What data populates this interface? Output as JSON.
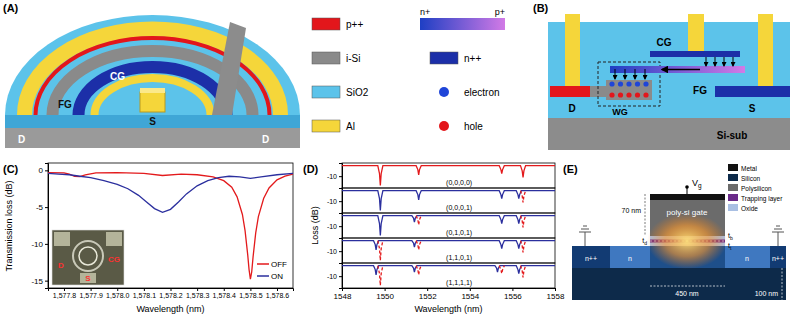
{
  "panel_a": {
    "label": "(A)",
    "texts": {
      "cg": "CG",
      "fg": "FG",
      "s": "S",
      "d_left": "D",
      "d_right": "D"
    }
  },
  "materials_legend": {
    "swatches": [
      {
        "label": "p++",
        "color": "#e3161b"
      },
      {
        "label": "i-Si",
        "color": "#8a8a8a"
      },
      {
        "label": "SiO2",
        "color": "#5cc3ea"
      },
      {
        "label": "Al",
        "color": "#f5d63a"
      },
      {
        "label": "n++",
        "color": "#1c2fa8"
      }
    ],
    "gradient": {
      "from_label": "n+",
      "to_label": "p+",
      "from_color": "#1e3fc4",
      "to_color": "#d27ae6"
    },
    "dots": [
      {
        "label": "electron",
        "color": "#1f45d8"
      },
      {
        "label": "hole",
        "color": "#e3161b"
      }
    ]
  },
  "panel_b": {
    "label": "(B)",
    "texts": {
      "d": "D",
      "s": "S",
      "cg": "CG",
      "fg": "FG",
      "wg": "WG",
      "sub": "Si-sub"
    }
  },
  "panel_e": {
    "label": "(E)",
    "gate_voltage": {
      "main": "V",
      "sub": "g"
    },
    "gate": "poly-si gate",
    "gate_height": "70 nm",
    "channel_length": "450 nm",
    "thickness": "100 nm",
    "thickness_labels": [
      {
        "main": "t",
        "sub": "d"
      },
      {
        "main": "t",
        "sub": "b"
      },
      {
        "main": "t",
        "sub": "t"
      }
    ],
    "doping": [
      "n++",
      "n",
      "n",
      "n++"
    ],
    "legend": [
      {
        "label": "Metal",
        "color": "#111111"
      },
      {
        "label": "Silicon",
        "color": "#0d2a4a"
      },
      {
        "label": "Polysilicon",
        "color": "#6b6b6b"
      },
      {
        "label": "Trapping layer",
        "color": "#6a2a8a"
      },
      {
        "label": "Oxide",
        "color": "#a9bfe3"
      }
    ]
  },
  "chart_data": [
    {
      "type": "line",
      "title": "(C)",
      "xlabel": "Wavelength (nm)",
      "ylabel": "Transmission loss (dB)",
      "xlim": [
        1577.74,
        1578.66
      ],
      "ylim": [
        -16,
        1
      ],
      "xticks": [
        {
          "value": 1577.8,
          "label": "1,577.8"
        },
        {
          "value": 1577.9,
          "label": "1,577.9"
        },
        {
          "value": 1578.0,
          "label": "1,578.0"
        },
        {
          "value": 1578.1,
          "label": "1,578.1"
        },
        {
          "value": 1578.2,
          "label": "1,578.2"
        },
        {
          "value": 1578.3,
          "label": "1,578.3"
        },
        {
          "value": 1578.4,
          "label": "1,578.4"
        },
        {
          "value": 1578.5,
          "label": "1,578.5"
        },
        {
          "value": 1578.6,
          "label": "1,578.6"
        }
      ],
      "yticks": [
        0,
        -5,
        -10,
        -15
      ],
      "legend": "lower right",
      "annotations": [
        "D",
        "S",
        "CG"
      ],
      "series": [
        {
          "name": "OFF",
          "color": "#e31a1c",
          "x": [
            1577.74,
            1577.8,
            1577.82,
            1577.84,
            1577.86,
            1577.88,
            1577.92,
            1578.0,
            1578.1,
            1578.17,
            1578.24,
            1578.3,
            1578.36,
            1578.4,
            1578.43,
            1578.45,
            1578.47,
            1578.48,
            1578.49,
            1578.495,
            1578.5,
            1578.505,
            1578.51,
            1578.52,
            1578.53,
            1578.55,
            1578.57,
            1578.6,
            1578.63,
            1578.66
          ],
          "values": [
            -0.3,
            -0.35,
            -0.5,
            -0.8,
            -0.85,
            -0.6,
            -0.35,
            -0.3,
            -0.4,
            -0.7,
            -0.5,
            -0.6,
            -0.9,
            -1.4,
            -2.3,
            -3.6,
            -6,
            -8.2,
            -11.5,
            -13.5,
            -14.8,
            -13.8,
            -11.8,
            -8.5,
            -6.3,
            -3.8,
            -2.4,
            -1.3,
            -0.8,
            -0.5
          ]
        },
        {
          "name": "ON",
          "color": "#2b2f9e",
          "x": [
            1577.74,
            1577.78,
            1577.82,
            1577.86,
            1577.9,
            1577.95,
            1578.0,
            1578.04,
            1578.08,
            1578.11,
            1578.14,
            1578.17,
            1578.2,
            1578.23,
            1578.26,
            1578.3,
            1578.34,
            1578.38,
            1578.42,
            1578.46,
            1578.5,
            1578.54,
            1578.6,
            1578.66
          ],
          "values": [
            -0.4,
            -0.5,
            -0.6,
            -0.8,
            -1.0,
            -1.4,
            -1.9,
            -2.5,
            -3.4,
            -4.3,
            -5.2,
            -5.7,
            -5.3,
            -4.3,
            -3.2,
            -2.1,
            -1.4,
            -1.0,
            -0.8,
            -0.9,
            -1.1,
            -0.9,
            -0.6,
            -0.4
          ]
        }
      ]
    },
    {
      "type": "line",
      "title": "(D)",
      "tick_labels": "y",
      "xlim": [
        1548,
        1558
      ],
      "ylim": [
        -19,
        0
      ],
      "yticks": [
        -10
      ],
      "annotations": [
        "(0,0,0,0)"
      ],
      "series": [
        {
          "color": "#e31a1c",
          "line_style": "solid",
          "x": [
            1548,
            1549.68,
            1549.76,
            1549.8,
            1549.84,
            1549.92,
            1551.48,
            1551.56,
            1551.6,
            1551.64,
            1551.72,
            1555.38,
            1555.46,
            1555.5,
            1555.54,
            1555.62,
            1556.38,
            1556.46,
            1556.5,
            1556.54,
            1556.62,
            1558
          ],
          "values": [
            -2,
            -2,
            -8,
            -17,
            -8,
            -2,
            -2,
            -5,
            -9,
            -5,
            -2,
            -2,
            -5,
            -8,
            -5,
            -2,
            -2,
            -6,
            -11,
            -6,
            -2,
            -2
          ]
        }
      ]
    },
    {
      "type": "line",
      "tick_labels": "y",
      "xlim": [
        1548,
        1558
      ],
      "ylim": [
        -19,
        0
      ],
      "yticks": [
        -10
      ],
      "annotations": [
        "(0,0,0,1)"
      ],
      "series": [
        {
          "color": "#2b2f9e",
          "line_style": "solid",
          "x": [
            1548,
            1549.68,
            1549.76,
            1549.8,
            1549.84,
            1549.92,
            1551.48,
            1551.56,
            1551.6,
            1551.64,
            1551.72,
            1555.38,
            1555.46,
            1555.5,
            1555.54,
            1555.62,
            1556.18,
            1556.26,
            1556.3,
            1556.34,
            1556.42,
            1558
          ],
          "values": [
            -2,
            -2,
            -8,
            -17,
            -8,
            -2,
            -2,
            -5,
            -9,
            -5,
            -2,
            -2,
            -5,
            -8,
            -5,
            -2,
            -2,
            -5,
            -8,
            -5,
            -2,
            -2
          ]
        },
        {
          "color": "#e31a1c",
          "line_style": "dashed",
          "x": [
            1556.38,
            1556.46,
            1556.5,
            1556.54,
            1556.62
          ],
          "values": [
            -2,
            -6,
            -11,
            -6,
            -2
          ]
        }
      ]
    },
    {
      "type": "line",
      "tick_labels": "y",
      "xlim": [
        1548,
        1558
      ],
      "ylim": [
        -19,
        0
      ],
      "yticks": [
        -10
      ],
      "ylabel": "Loss (dB)",
      "annotations": [
        "(0,1,0,1)"
      ],
      "series": [
        {
          "color": "#2b2f9e",
          "line_style": "solid",
          "x": [
            1548,
            1549.68,
            1549.76,
            1549.8,
            1549.84,
            1549.92,
            1551.28,
            1551.36,
            1551.4,
            1551.44,
            1551.52,
            1555.38,
            1555.46,
            1555.5,
            1555.54,
            1555.62,
            1556.18,
            1556.26,
            1556.3,
            1556.34,
            1556.42,
            1558
          ],
          "values": [
            -2,
            -2,
            -8,
            -17,
            -8,
            -2,
            -2,
            -4,
            -7,
            -4,
            -2,
            -2,
            -5,
            -8,
            -5,
            -2,
            -2,
            -5,
            -8,
            -5,
            -2,
            -2
          ]
        },
        {
          "color": "#e31a1c",
          "line_style": "dashed",
          "x": [
            1551.48,
            1551.56,
            1551.6,
            1551.64,
            1551.72,
            1553.5,
            1556.38,
            1556.46,
            1556.5,
            1556.54,
            1556.62
          ],
          "values": [
            -2,
            -5,
            -9,
            -5,
            -2,
            null,
            -2,
            -6,
            -11,
            -6,
            -2
          ]
        }
      ]
    },
    {
      "type": "line",
      "tick_labels": "y",
      "xlim": [
        1548,
        1558
      ],
      "ylim": [
        -19,
        0
      ],
      "yticks": [
        -10
      ],
      "annotations": [
        "(1,1,0,1)"
      ],
      "series": [
        {
          "color": "#2b2f9e",
          "line_style": "solid",
          "x": [
            1548,
            1549.48,
            1549.56,
            1549.6,
            1549.64,
            1549.72,
            1551.28,
            1551.36,
            1551.4,
            1551.44,
            1551.52,
            1555.38,
            1555.46,
            1555.5,
            1555.54,
            1555.62,
            1556.18,
            1556.26,
            1556.3,
            1556.34,
            1556.42,
            1558
          ],
          "values": [
            -2,
            -2,
            -5,
            -9,
            -5,
            -2,
            -2,
            -4,
            -7,
            -4,
            -2,
            -2,
            -5,
            -8,
            -5,
            -2,
            -2,
            -5,
            -8,
            -5,
            -2,
            -2
          ]
        },
        {
          "color": "#e31a1c",
          "line_style": "dashed",
          "x": [
            1549.68,
            1549.76,
            1549.8,
            1549.84,
            1549.92,
            1550.7,
            1551.48,
            1551.56,
            1551.6,
            1551.64,
            1551.72,
            1553.5,
            1556.38,
            1556.46,
            1556.5,
            1556.54,
            1556.62
          ],
          "values": [
            -2,
            -8,
            -17,
            -8,
            -2,
            null,
            -2,
            -5,
            -9,
            -5,
            -2,
            null,
            -2,
            -6,
            -11,
            -6,
            -2
          ]
        }
      ]
    },
    {
      "type": "line",
      "xlabel": "Wavelength (nm)",
      "xlim": [
        1548,
        1558
      ],
      "ylim": [
        -19,
        0
      ],
      "yticks": [
        -10
      ],
      "xticks": [
        1548,
        1550,
        1552,
        1554,
        1556,
        1558
      ],
      "annotations": [
        "(1,1,1,1)"
      ],
      "series": [
        {
          "color": "#2b2f9e",
          "line_style": "solid",
          "x": [
            1548,
            1549.48,
            1549.56,
            1549.6,
            1549.64,
            1549.72,
            1551.28,
            1551.36,
            1551.4,
            1551.44,
            1551.52,
            1555.18,
            1555.26,
            1555.3,
            1555.34,
            1555.42,
            1556.18,
            1556.26,
            1556.3,
            1556.34,
            1556.42,
            1558
          ],
          "values": [
            -2,
            -2,
            -5,
            -9,
            -5,
            -2,
            -2,
            -4,
            -7,
            -4,
            -2,
            -2,
            -4,
            -7,
            -4,
            -2,
            -2,
            -5,
            -8,
            -5,
            -2,
            -2
          ]
        },
        {
          "color": "#e31a1c",
          "line_style": "dashed",
          "x": [
            1549.68,
            1549.76,
            1549.8,
            1549.84,
            1549.92,
            1550.7,
            1551.48,
            1551.56,
            1551.6,
            1551.64,
            1551.72,
            1553.5,
            1555.38,
            1555.46,
            1555.5,
            1555.54,
            1555.62,
            1556.0,
            1556.38,
            1556.46,
            1556.5,
            1556.54,
            1556.62
          ],
          "values": [
            -2,
            -8,
            -17,
            -8,
            -2,
            null,
            -2,
            -5,
            -9,
            -5,
            -2,
            null,
            -2,
            -5,
            -8,
            -5,
            -2,
            null,
            -2,
            -6,
            -11,
            -6,
            -2
          ]
        }
      ]
    }
  ]
}
